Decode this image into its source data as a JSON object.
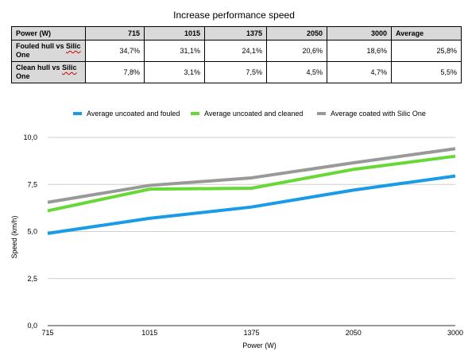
{
  "title": "Increase performance speed",
  "table": {
    "header": [
      "Power (W)",
      "715",
      "1015",
      "1375",
      "2050",
      "3000",
      "Average"
    ],
    "rows": [
      {
        "label_a": "Fouled hull vs ",
        "label_b": "Silic",
        "label_c": " One",
        "values": [
          "34,7%",
          "31,1%",
          "24,1%",
          "20,6%",
          "18,6%",
          "25,8%"
        ]
      },
      {
        "label_a": "Clean hull vs ",
        "label_b": "Silic",
        "label_c": " One",
        "values": [
          "7,8%",
          "3,1%",
          "7,5%",
          "4,5%",
          "4,7%",
          "5,5%"
        ]
      }
    ]
  },
  "chart_data": {
    "type": "line",
    "categories": [
      "715",
      "1015",
      "1375",
      "2050",
      "3000"
    ],
    "series": [
      {
        "name": "Average uncoated and fouled",
        "color": "#1a9be6",
        "values": [
          4.9,
          5.7,
          6.3,
          7.2,
          7.95
        ]
      },
      {
        "name": "Average uncoated and cleaned",
        "color": "#66d936",
        "values": [
          6.1,
          7.25,
          7.3,
          8.3,
          9.0
        ]
      },
      {
        "name": "Average coated with Silic One",
        "color": "#999999",
        "values": [
          6.55,
          7.45,
          7.85,
          8.65,
          9.4
        ]
      }
    ],
    "xlabel": "Power (W)",
    "ylabel": "Speed (km/h)",
    "ylim": [
      0,
      10
    ],
    "yticks": [
      "0,0",
      "2,5",
      "5,0",
      "7,5",
      "10,0"
    ],
    "grid": true,
    "legend_position": "top"
  }
}
